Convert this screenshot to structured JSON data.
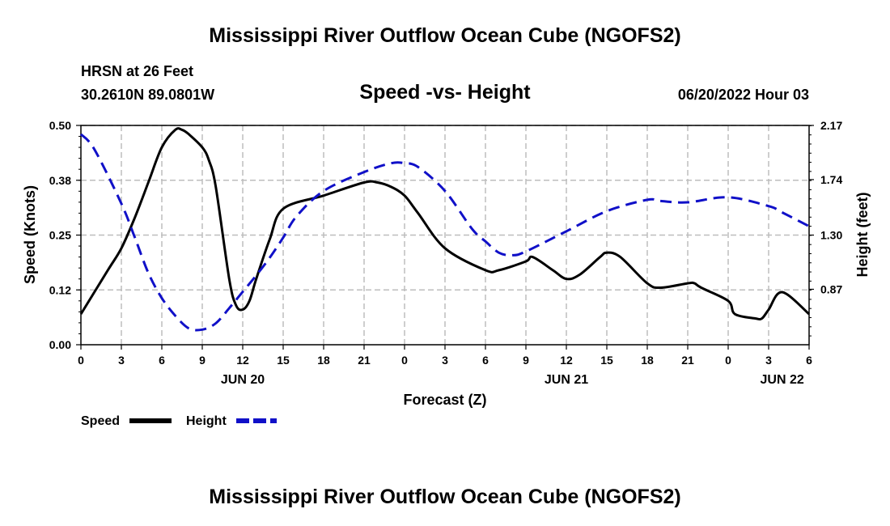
{
  "header": {
    "main_title": "Mississippi River Outflow Ocean Cube (NGOFS2)",
    "station": "HRSN at 26 Feet",
    "coords": "30.2610N  89.0801W",
    "subtitle": "Speed -vs- Height",
    "datetime": "06/20/2022 Hour 03",
    "bottom_title": "Mississippi River Outflow Ocean Cube (NGOFS2)"
  },
  "chart_data": {
    "type": "line",
    "title": "Speed -vs- Height",
    "xlabel": "Forecast (Z)",
    "ylabel": "Speed (Knots)",
    "y2label": "Height (feet)",
    "xlim": [
      0,
      54
    ],
    "ylim": [
      0,
      0.5
    ],
    "y2lim": [
      0.43,
      2.17
    ],
    "x_ticks": [
      0,
      3,
      6,
      9,
      12,
      15,
      18,
      21,
      24,
      27,
      30,
      33,
      36,
      39,
      42,
      45,
      48,
      51,
      54
    ],
    "x_tick_labels": [
      "0",
      "3",
      "6",
      "9",
      "12",
      "15",
      "18",
      "21",
      "0",
      "3",
      "6",
      "9",
      "12",
      "15",
      "18",
      "21",
      "0",
      "3",
      "6"
    ],
    "y_tick_labels": [
      "0.00",
      "0.12",
      "0.25",
      "0.38",
      "0.50"
    ],
    "y_ticks": [
      0,
      0.125,
      0.25,
      0.375,
      0.5
    ],
    "y2_tick_labels": [
      "0.87",
      "1.30",
      "1.74",
      "2.17"
    ],
    "y2_ticks": [
      0.87,
      1.3,
      1.74,
      2.17
    ],
    "day_labels": [
      {
        "x": 12,
        "label": "JUN 20"
      },
      {
        "x": 36,
        "label": "JUN 21"
      },
      {
        "x": 52,
        "label": "JUN 22"
      }
    ],
    "legend": [
      {
        "name": "Speed",
        "color": "#000000",
        "dash": "solid"
      },
      {
        "name": "Height",
        "color": "#1010c8",
        "dash": "dashed"
      }
    ],
    "series": [
      {
        "name": "Speed",
        "axis": "left",
        "color": "#000000",
        "x": [
          0,
          2,
          3,
          4,
          5,
          6,
          7,
          7.5,
          8,
          9,
          9.5,
          10,
          11,
          11.5,
          12,
          12.5,
          13,
          14,
          15,
          18,
          21,
          22,
          23,
          24,
          25,
          27,
          30,
          31,
          33,
          33.5,
          35,
          36,
          37,
          38.5,
          39,
          40,
          42,
          43,
          45,
          45.5,
          46,
          48,
          48.5,
          50,
          50.5,
          51,
          52,
          54
        ],
        "y": [
          0.07,
          0.17,
          0.22,
          0.29,
          0.37,
          0.45,
          0.49,
          0.49,
          0.48,
          0.45,
          0.42,
          0.36,
          0.15,
          0.09,
          0.08,
          0.1,
          0.15,
          0.24,
          0.31,
          0.34,
          0.37,
          0.37,
          0.36,
          0.34,
          0.3,
          0.22,
          0.17,
          0.17,
          0.19,
          0.2,
          0.17,
          0.15,
          0.16,
          0.2,
          0.21,
          0.2,
          0.14,
          0.13,
          0.14,
          0.14,
          0.13,
          0.1,
          0.07,
          0.06,
          0.06,
          0.08,
          0.12,
          0.07
        ]
      },
      {
        "name": "Height",
        "axis": "right",
        "color": "#1010c8",
        "x": [
          0,
          1,
          3,
          4,
          5,
          6,
          7,
          8,
          9,
          10,
          11,
          12,
          13,
          14,
          15,
          16,
          18,
          21,
          23,
          24,
          25,
          27,
          29,
          30,
          31,
          32,
          33,
          36,
          39,
          42,
          43,
          45,
          48,
          51,
          52,
          54
        ],
        "y": [
          2.1,
          1.98,
          1.55,
          1.28,
          1.0,
          0.8,
          0.66,
          0.56,
          0.55,
          0.6,
          0.72,
          0.85,
          0.98,
          1.12,
          1.28,
          1.45,
          1.65,
          1.8,
          1.87,
          1.87,
          1.84,
          1.65,
          1.35,
          1.25,
          1.16,
          1.14,
          1.17,
          1.33,
          1.49,
          1.58,
          1.57,
          1.56,
          1.6,
          1.53,
          1.48,
          1.37
        ]
      }
    ]
  }
}
